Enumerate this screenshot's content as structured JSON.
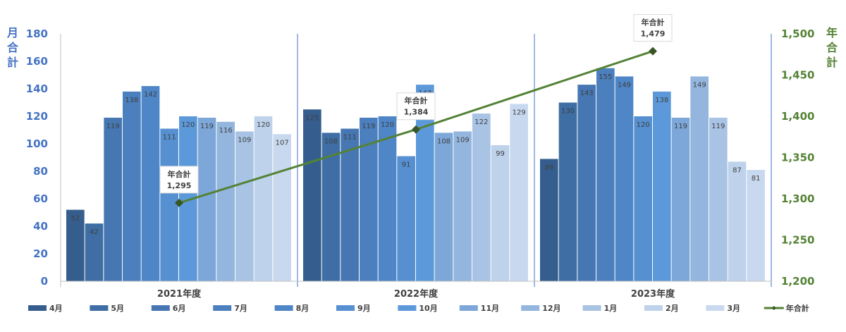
{
  "chart_data": {
    "type": "bar+line",
    "left_axis_title": "月合計",
    "right_axis_title": "年合計",
    "left_ylim": [
      0,
      180
    ],
    "left_ticks": [
      "0",
      "20",
      "40",
      "60",
      "80",
      "100",
      "120",
      "140",
      "160",
      "180"
    ],
    "right_ylim": [
      1200,
      1500
    ],
    "right_ticks": [
      "1,200",
      "1,250",
      "1,300",
      "1,350",
      "1,400",
      "1,450",
      "1,500"
    ],
    "groups": [
      "2021年度",
      "2022年度",
      "2023年度"
    ],
    "months": [
      "4月",
      "5月",
      "6月",
      "7月",
      "8月",
      "9月",
      "10月",
      "11月",
      "12月",
      "1月",
      "2月",
      "3月"
    ],
    "month_colors": [
      "#355E8E",
      "#3E6EA4",
      "#4677B3",
      "#4B7FBE",
      "#4E86C8",
      "#5690D1",
      "#5C99DA",
      "#7DA7D8",
      "#93B5DE",
      "#A8C3E4",
      "#BED2EC",
      "#C8D9EF"
    ],
    "series": [
      {
        "group": "2021年度",
        "values": [
          52,
          42,
          119,
          138,
          142,
          111,
          120,
          119,
          116,
          109,
          120,
          107
        ]
      },
      {
        "group": "2022年度",
        "values": [
          125,
          108,
          111,
          119,
          120,
          91,
          143,
          108,
          109,
          122,
          99,
          129
        ]
      },
      {
        "group": "2023年度",
        "values": [
          89,
          130,
          143,
          155,
          149,
          120,
          138,
          119,
          149,
          119,
          87,
          81
        ]
      }
    ],
    "line_series": {
      "name": "年合計",
      "color": "#548235",
      "values": [
        1295,
        1384,
        1479
      ],
      "labels": [
        "1,295",
        "1,384",
        "1,479"
      ],
      "callout_title": "年合計"
    },
    "legend": {
      "position": "bottom",
      "items": [
        "4月",
        "5月",
        "6月",
        "7月",
        "8月",
        "9月",
        "10月",
        "11月",
        "12月",
        "1月",
        "2月",
        "3月",
        "年合計"
      ]
    },
    "colors": {
      "left_axis": "#4472C4",
      "right_axis": "#548235",
      "divider": "#4472C4"
    }
  }
}
